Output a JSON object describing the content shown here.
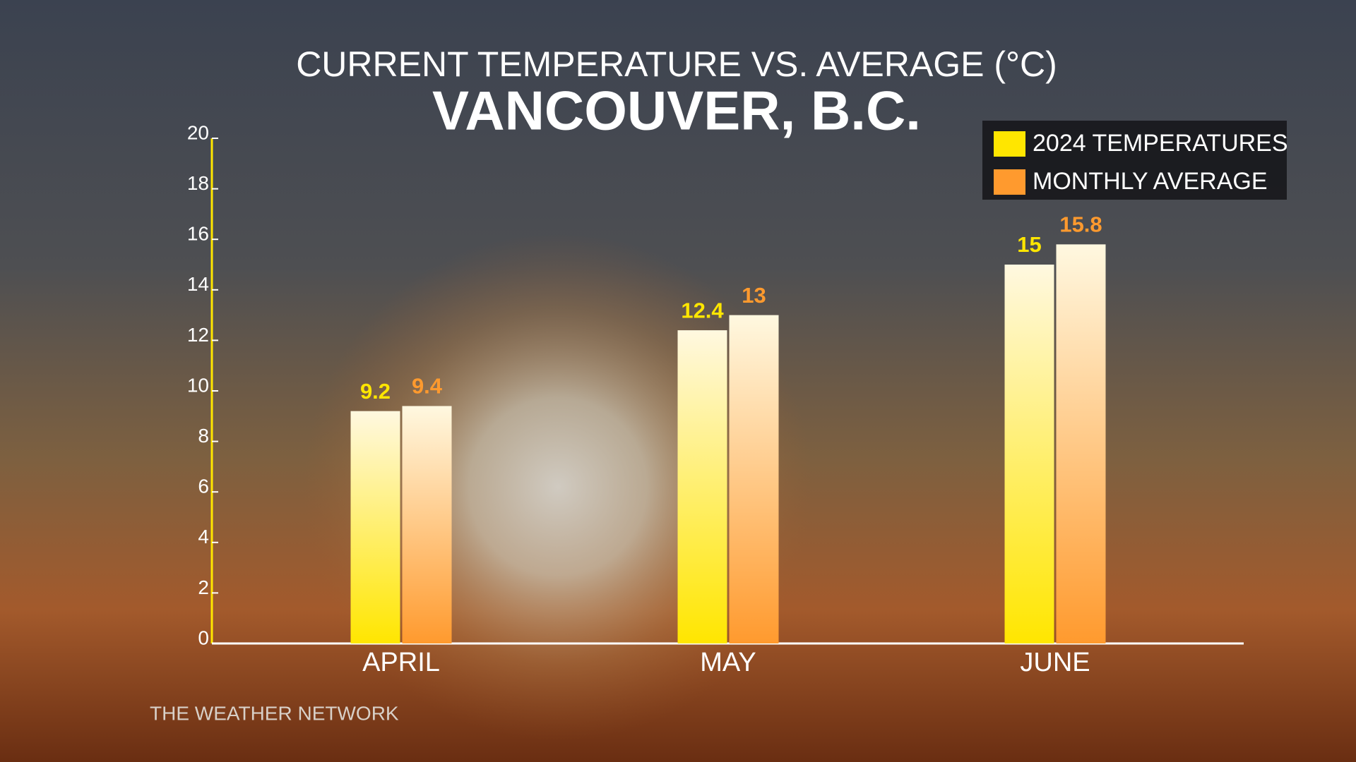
{
  "chart_data": {
    "type": "bar",
    "title": "CURRENT TEMPERATURE VS. AVERAGE (°C)",
    "subtitle": "VANCOUVER, B.C.",
    "categories": [
      "APRIL",
      "MAY",
      "JUNE"
    ],
    "series": [
      {
        "name": "2024 TEMPERATURES",
        "color": "#ffe600",
        "values": [
          9.2,
          12.4,
          15
        ]
      },
      {
        "name": "MONTHLY AVERAGE",
        "color": "#ff9a2e",
        "values": [
          9.4,
          13,
          15.8
        ]
      }
    ],
    "ylim": [
      0,
      20
    ],
    "yticks": [
      0,
      2,
      4,
      6,
      8,
      10,
      12,
      14,
      16,
      18,
      20
    ],
    "grid": false,
    "legend": "top-right",
    "source": "THE WEATHER NETWORK"
  }
}
